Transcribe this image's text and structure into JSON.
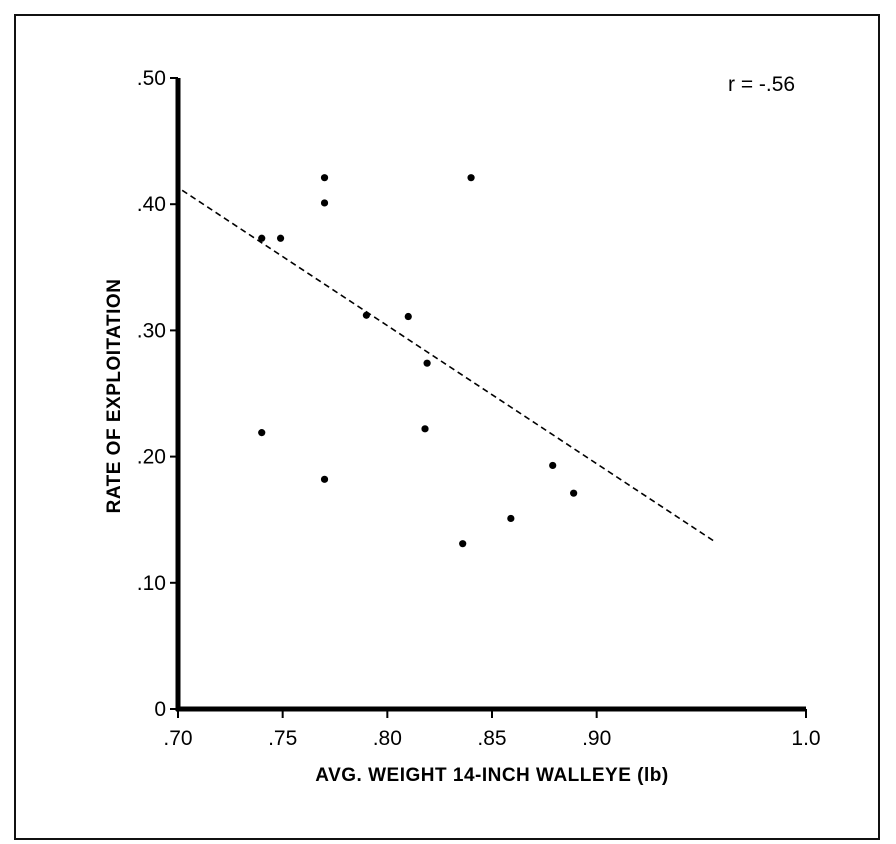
{
  "chart_data": {
    "type": "scatter",
    "title": "",
    "xlabel": "AVG. WEIGHT 14-INCH WALLEYE (lb)",
    "ylabel": "RATE OF EXPLOITATION",
    "xlim": [
      0.7,
      1.0
    ],
    "ylim": [
      0,
      0.5
    ],
    "x_ticks": [
      0.7,
      0.75,
      0.8,
      0.85,
      0.9,
      1.0
    ],
    "x_tick_labels": [
      ".70",
      ".75",
      ".80",
      ".85",
      ".90",
      "1.0"
    ],
    "y_ticks": [
      0,
      0.1,
      0.2,
      0.3,
      0.4,
      0.5
    ],
    "y_tick_labels": [
      "0",
      ".10",
      ".20",
      ".30",
      ".40",
      ".50"
    ],
    "annotation": "r = -.56",
    "grid": false,
    "points": [
      {
        "x": 0.74,
        "y": 0.373
      },
      {
        "x": 0.749,
        "y": 0.373
      },
      {
        "x": 0.77,
        "y": 0.421
      },
      {
        "x": 0.77,
        "y": 0.401
      },
      {
        "x": 0.79,
        "y": 0.312
      },
      {
        "x": 0.81,
        "y": 0.311
      },
      {
        "x": 0.819,
        "y": 0.274
      },
      {
        "x": 0.818,
        "y": 0.222
      },
      {
        "x": 0.84,
        "y": 0.421
      },
      {
        "x": 0.74,
        "y": 0.219
      },
      {
        "x": 0.77,
        "y": 0.182
      },
      {
        "x": 0.836,
        "y": 0.131
      },
      {
        "x": 0.859,
        "y": 0.151
      },
      {
        "x": 0.879,
        "y": 0.193
      },
      {
        "x": 0.889,
        "y": 0.171
      }
    ],
    "trendline": {
      "style": "dashed",
      "x": [
        0.702,
        0.957
      ],
      "y": [
        0.411,
        0.132
      ]
    }
  },
  "colors": {
    "ink": "#000000",
    "background": "#ffffff"
  }
}
